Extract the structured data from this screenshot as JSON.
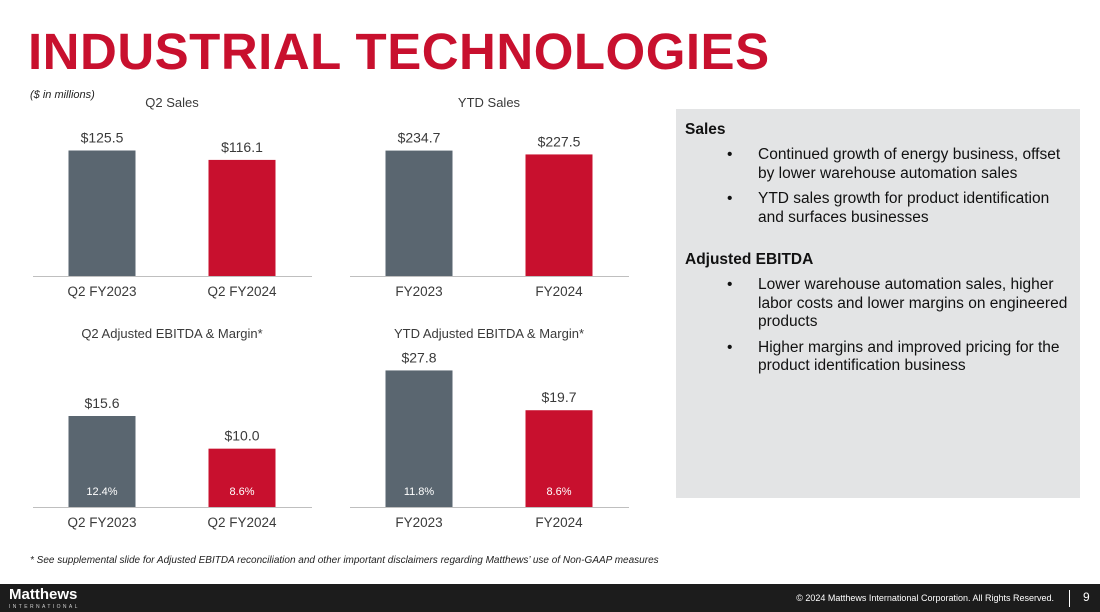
{
  "title": "INDUSTRIAL TECHNOLOGIES",
  "units_note": "($ in millions)",
  "colors": {
    "accent": "#c8102e",
    "gray_bar": "#5a6670",
    "panel": "#e3e4e5"
  },
  "chart_data": [
    {
      "type": "bar",
      "title": "Q2 Sales",
      "categories": [
        "Q2 FY2023",
        "Q2 FY2024"
      ],
      "values": [
        125.5,
        116.1
      ],
      "value_labels": [
        "$125.5",
        "$116.1"
      ],
      "colors": [
        "#5a6670",
        "#c8102e"
      ],
      "ylim": [
        0,
        140
      ]
    },
    {
      "type": "bar",
      "title": "YTD Sales",
      "categories": [
        "FY2023",
        "FY2024"
      ],
      "values": [
        234.7,
        227.5
      ],
      "value_labels": [
        "$234.7",
        "$227.5"
      ],
      "colors": [
        "#5a6670",
        "#c8102e"
      ],
      "ylim": [
        0,
        262
      ]
    },
    {
      "type": "bar",
      "title": "Q2 Adjusted EBITDA & Margin*",
      "categories": [
        "Q2 FY2023",
        "Q2 FY2024"
      ],
      "values": [
        15.6,
        10.0
      ],
      "value_labels": [
        "$15.6",
        "$10.0"
      ],
      "margins": [
        "12.4%",
        "8.6%"
      ],
      "colors": [
        "#5a6670",
        "#c8102e"
      ],
      "ylim": [
        0,
        24
      ]
    },
    {
      "type": "bar",
      "title": "YTD Adjusted EBITDA & Margin*",
      "categories": [
        "FY2023",
        "FY2024"
      ],
      "values": [
        27.8,
        19.7
      ],
      "value_labels": [
        "$27.8",
        "$19.7"
      ],
      "margins": [
        "11.8%",
        "8.6%"
      ],
      "colors": [
        "#5a6670",
        "#c8102e"
      ],
      "ylim": [
        0,
        28.5
      ]
    }
  ],
  "panel": {
    "sales_heading": "Sales",
    "sales_bullets": [
      "Continued growth of energy business, offset by lower warehouse automation sales",
      "YTD sales growth for product identification and surfaces businesses"
    ],
    "ebitda_heading": "Adjusted EBITDA",
    "ebitda_bullets": [
      "Lower warehouse automation sales, higher labor costs and lower margins on engineered products",
      "Higher margins and improved pricing for the product identification business"
    ],
    "bullet_char": "•"
  },
  "footnote": "* See supplemental slide for Adjusted EBITDA reconciliation and other important disclaimers regarding Matthews’ use of Non-GAAP measures",
  "footer": {
    "logo": "Matthews",
    "logo_sub": "INTERNATIONAL",
    "copyright": "© 2024 Matthews International Corporation. All Rights Reserved.",
    "page_number": "9"
  }
}
